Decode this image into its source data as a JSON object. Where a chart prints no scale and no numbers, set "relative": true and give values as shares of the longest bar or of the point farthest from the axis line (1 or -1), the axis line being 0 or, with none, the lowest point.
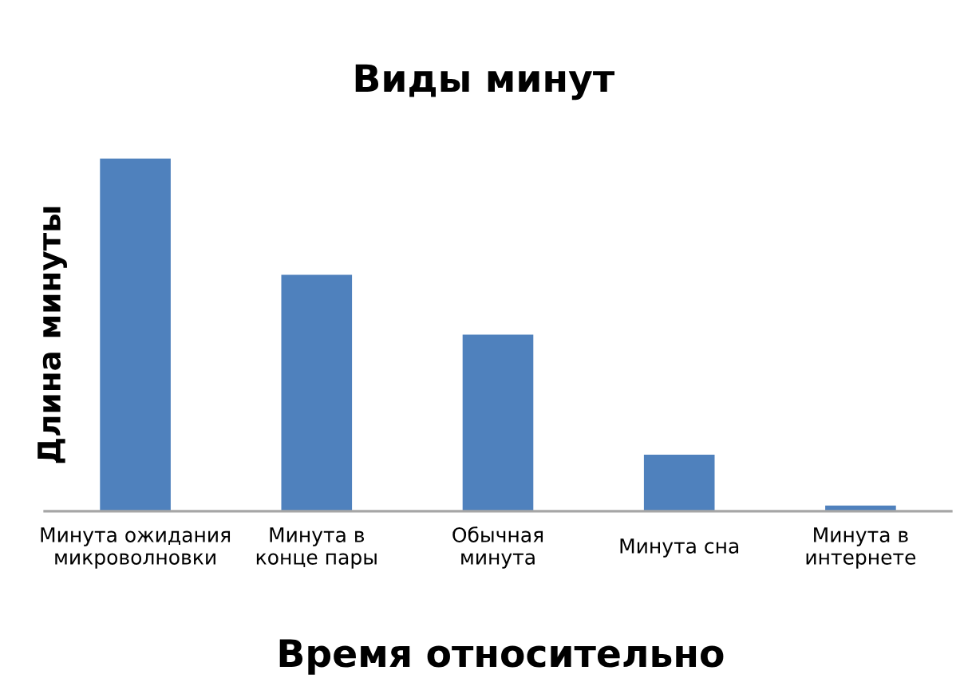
{
  "chart_data": {
    "type": "bar",
    "title": "Виды минут",
    "xlabel": "Время относительно",
    "ylabel": "Длина минуты",
    "categories": [
      "Минута ожидания\nмикроволновки",
      "Минута в\nконце пары",
      "Обычная\nминута",
      "Минута сна",
      "Минута в\nинтернете"
    ],
    "values": [
      1,
      0.67,
      0.5,
      0.16,
      0.016
    ],
    "color": "#4f81bd",
    "relative": true
  }
}
